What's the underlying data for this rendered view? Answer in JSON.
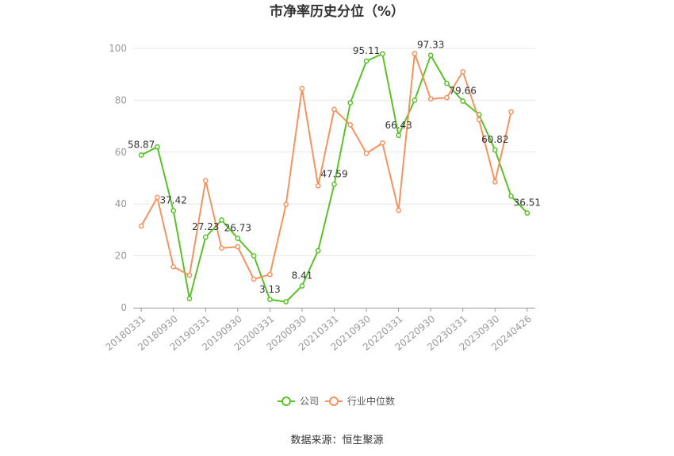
{
  "chart_data": {
    "type": "line",
    "title": "市净率历史分位（%）",
    "ylim": [
      0,
      100
    ],
    "yticks": [
      0,
      20,
      40,
      60,
      80,
      100
    ],
    "grid": true,
    "legend_position": "bottom",
    "x": [
      "20180331",
      "20180630",
      "20180930",
      "20181231",
      "20190331",
      "20190630",
      "20190930",
      "20191231",
      "20200331",
      "20200630",
      "20200930",
      "20201231",
      "20210331",
      "20210630",
      "20210930",
      "20211231",
      "20220331",
      "20220630",
      "20220930",
      "20221231",
      "20230331",
      "20230630",
      "20230930",
      "20231231",
      "20240426"
    ],
    "x_tick_labels": [
      "20180331",
      "20180930",
      "20190331",
      "20190930",
      "20200331",
      "20200930",
      "20210331",
      "20210930",
      "20220331",
      "20220930",
      "20230331",
      "20230930",
      "20240426"
    ],
    "series": [
      {
        "name": "公司",
        "color": "#5ac229",
        "values": [
          58.87,
          62.0,
          37.42,
          3.5,
          27.23,
          33.8,
          26.73,
          20.0,
          3.13,
          2.3,
          8.41,
          22.0,
          47.59,
          79.0,
          95.11,
          97.9,
          66.43,
          80.0,
          97.33,
          86.5,
          79.66,
          74.5,
          60.82,
          43.0,
          36.51
        ],
        "labels": {
          "0": "58.87",
          "2": "37.42",
          "4": "27.23",
          "6": "26.73",
          "8": "3.13",
          "10": "8.41",
          "12": "47.59",
          "14": "95.11",
          "16": "66.43",
          "18": "97.33",
          "20": "79.66",
          "22": "60.82",
          "24": "36.51"
        }
      },
      {
        "name": "行业中位数",
        "color": "#f5935f",
        "values": [
          31.5,
          42.5,
          15.8,
          12.5,
          49.0,
          23.0,
          23.5,
          11.0,
          12.8,
          39.8,
          84.5,
          47.0,
          76.5,
          70.5,
          59.5,
          63.5,
          37.5,
          98.0,
          80.5,
          81.0,
          91.0,
          72.5,
          48.5,
          75.5,
          null
        ]
      }
    ],
    "source": "数据来源：恒生聚源"
  }
}
